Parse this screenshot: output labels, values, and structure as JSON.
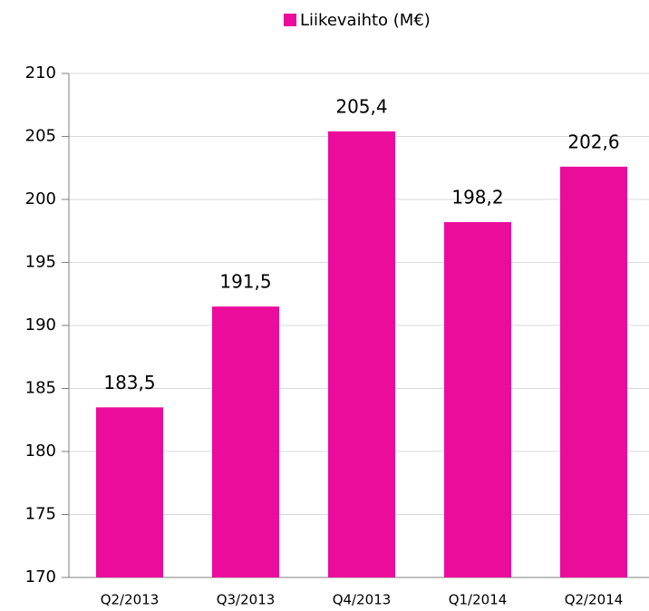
{
  "chart_data": {
    "type": "bar",
    "legend": "top",
    "grid": true,
    "series": [
      {
        "name": "Liikevaihto (M€)",
        "color": "#ec0c9c",
        "values": [
          183.5,
          191.5,
          205.4,
          198.2,
          202.6
        ],
        "value_labels": [
          "183,5",
          "191,5",
          "205,4",
          "198,2",
          "202,6"
        ]
      }
    ],
    "categories": [
      "Q2/2013",
      "Q3/2013",
      "Q4/2013",
      "Q1/2014",
      "Q2/2014"
    ],
    "ylim": [
      170,
      210
    ],
    "yticks": [
      170,
      175,
      180,
      185,
      190,
      195,
      200,
      205,
      210
    ]
  }
}
